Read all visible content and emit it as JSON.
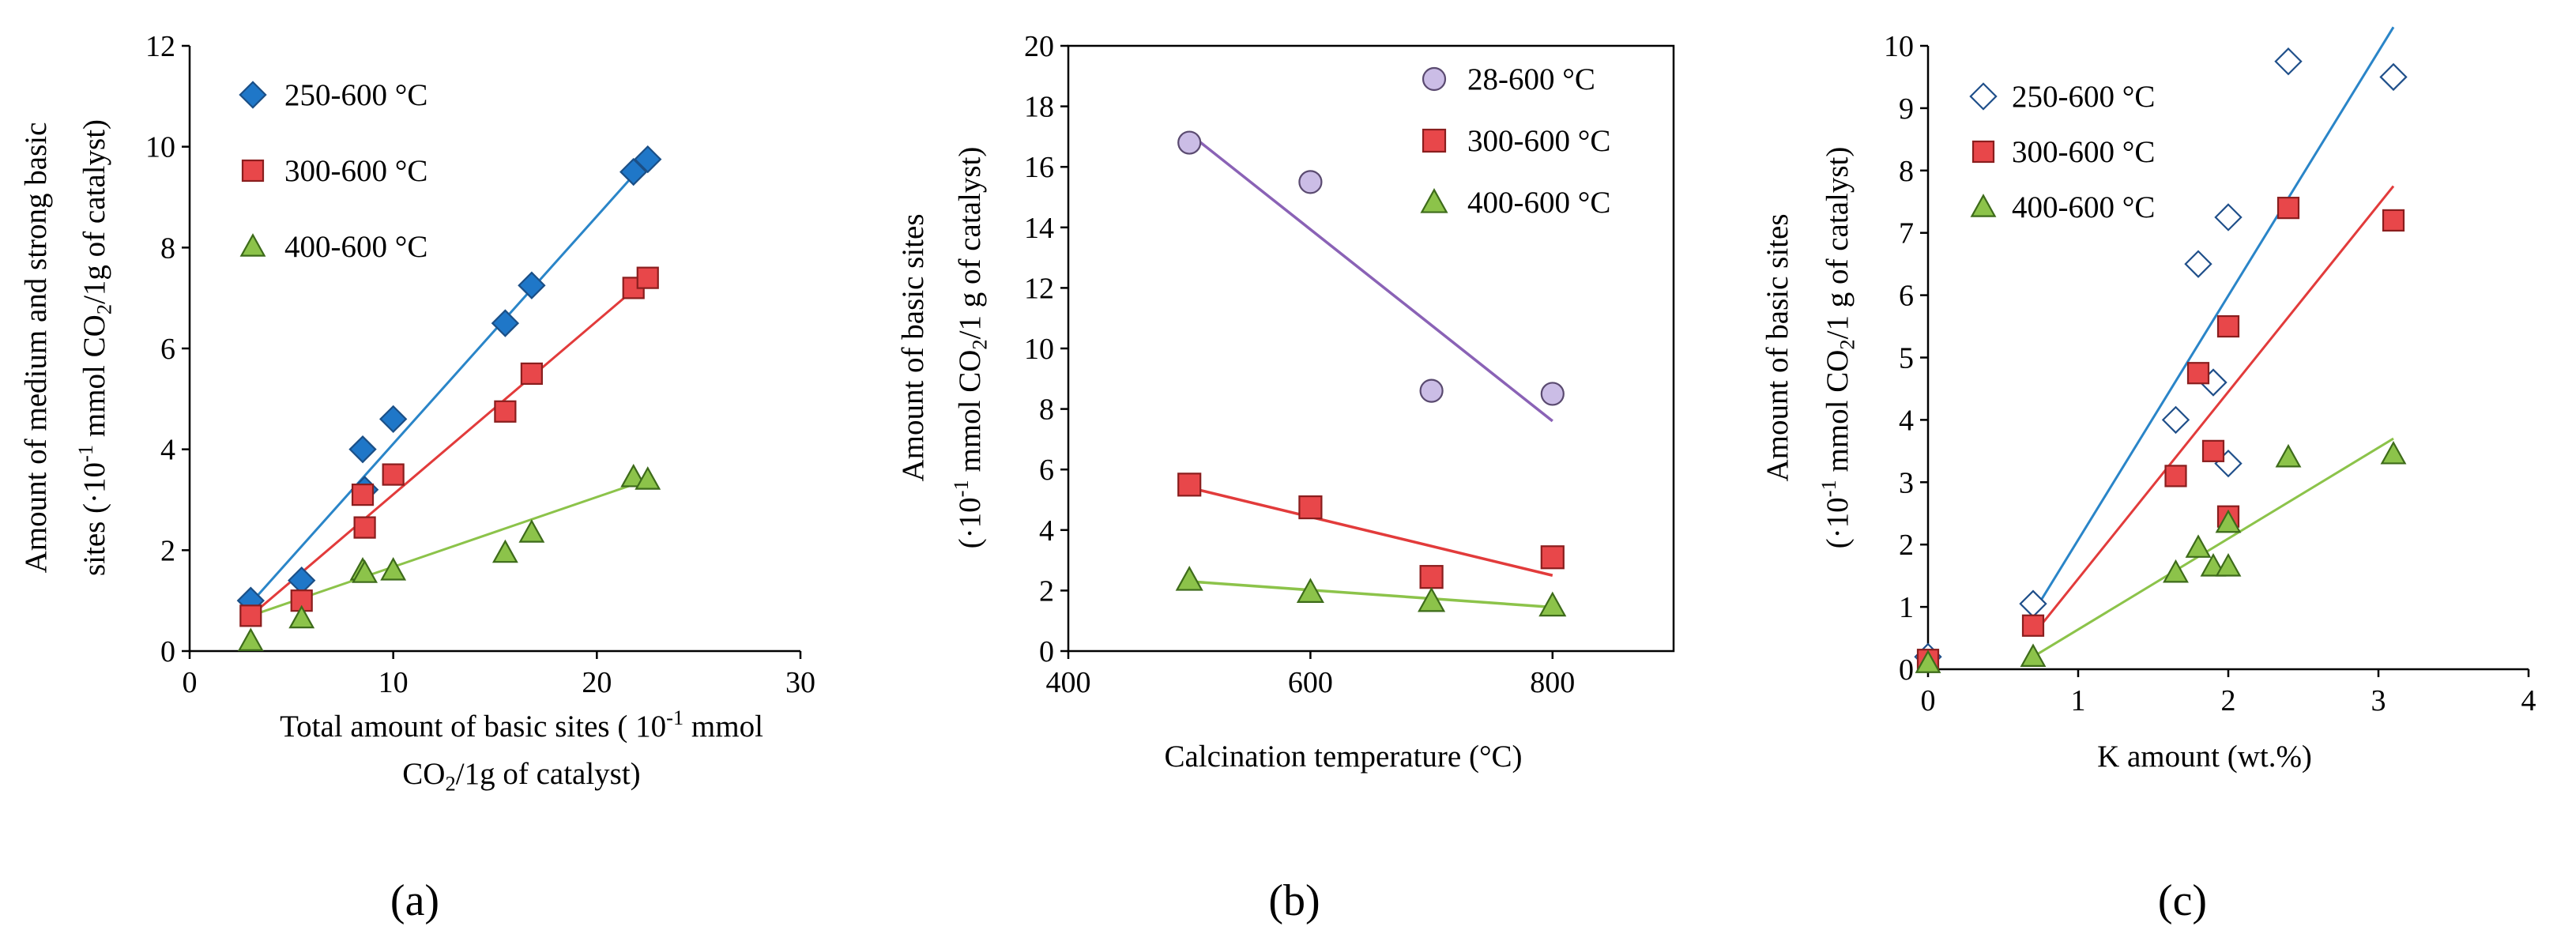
{
  "chart_data": [
    {
      "id": "a",
      "type": "scatter",
      "caption": "(a)",
      "xlabel_lines": [
        "Total amount of basic sites ( 10-1 mmol",
        "CO2/1g of catalyst)"
      ],
      "ylabel_lines": [
        "Amount of medium and strong basic",
        "sites (·10-1 mmol CO2/1g of catalyst)"
      ],
      "xlim": [
        0,
        30
      ],
      "ylim": [
        0,
        12
      ],
      "xticks": [
        "0",
        "10",
        "20",
        "30"
      ],
      "yticks": [
        "0",
        "2",
        "4",
        "6",
        "8",
        "10",
        "12"
      ],
      "series": [
        {
          "name": "250-600 °C",
          "marker": "diamond",
          "filled": true,
          "color": "#1f77c8",
          "line_color": "#2a85c8",
          "points": [
            [
              3.0,
              1.0
            ],
            [
              5.5,
              1.4
            ],
            [
              8.5,
              4.0
            ],
            [
              8.6,
              3.2
            ],
            [
              10.0,
              4.6
            ],
            [
              15.5,
              6.5
            ],
            [
              16.8,
              7.25
            ],
            [
              21.8,
              9.5
            ],
            [
              22.5,
              9.75
            ]
          ],
          "trend": [
            [
              3.0,
              0.95
            ],
            [
              22.5,
              9.75
            ]
          ]
        },
        {
          "name": "300-600 °C",
          "marker": "square",
          "filled": true,
          "color": "#e8474a",
          "line_color": "#e23b3b",
          "points": [
            [
              3.0,
              0.7
            ],
            [
              5.5,
              1.0
            ],
            [
              8.5,
              3.1
            ],
            [
              8.6,
              2.45
            ],
            [
              10.0,
              3.5
            ],
            [
              15.5,
              4.75
            ],
            [
              16.8,
              5.5
            ],
            [
              21.8,
              7.2
            ],
            [
              22.5,
              7.4
            ]
          ],
          "trend": [
            [
              3.0,
              0.7
            ],
            [
              22.5,
              7.4
            ]
          ]
        },
        {
          "name": "400-600 °C",
          "marker": "triangle",
          "filled": true,
          "color": "#8cc34a",
          "line_color": "#8cc34a",
          "points": [
            [
              3.0,
              0.2
            ],
            [
              5.5,
              0.65
            ],
            [
              8.5,
              1.6
            ],
            [
              8.6,
              1.55
            ],
            [
              10.0,
              1.6
            ],
            [
              15.5,
              1.95
            ],
            [
              16.8,
              2.35
            ],
            [
              21.8,
              3.45
            ],
            [
              22.5,
              3.4
            ]
          ],
          "trend": [
            [
              3.0,
              0.7
            ],
            [
              22.5,
              3.4
            ]
          ]
        }
      ]
    },
    {
      "id": "b",
      "type": "scatter",
      "caption": "(b)",
      "xlabel_lines": [
        "Calcination temperature (°C)"
      ],
      "ylabel_lines": [
        "Amount of basic sites",
        "(·10-1 mmol CO2/1 g of catalyst)"
      ],
      "xlim": [
        400,
        900
      ],
      "ylim": [
        0,
        20
      ],
      "xticks": [
        "400",
        "600",
        "800"
      ],
      "yticks": [
        "0",
        "2",
        "4",
        "6",
        "8",
        "10",
        "12",
        "14",
        "16",
        "18",
        "20"
      ],
      "series": [
        {
          "name": "28-600 °C",
          "marker": "circle",
          "filled": true,
          "color": "#cbbde6",
          "line_color": "#8a62b6",
          "points": [
            [
              500,
              16.8
            ],
            [
              600,
              15.5
            ],
            [
              700,
              8.6
            ],
            [
              800,
              8.5
            ]
          ],
          "trend": [
            [
              500,
              17.1
            ],
            [
              800,
              7.6
            ]
          ]
        },
        {
          "name": "300-600 °C",
          "marker": "square",
          "filled": true,
          "color": "#e8474a",
          "line_color": "#e23b3b",
          "points": [
            [
              500,
              5.5
            ],
            [
              600,
              4.75
            ],
            [
              700,
              2.45
            ],
            [
              800,
              3.1
            ]
          ],
          "trend": [
            [
              500,
              5.4
            ],
            [
              800,
              2.5
            ]
          ]
        },
        {
          "name": "400-600 °C",
          "marker": "triangle",
          "filled": true,
          "color": "#8cc34a",
          "line_color": "#8cc34a",
          "points": [
            [
              500,
              2.35
            ],
            [
              600,
              1.95
            ],
            [
              700,
              1.65
            ],
            [
              800,
              1.5
            ]
          ],
          "trend": [
            [
              500,
              2.3
            ],
            [
              800,
              1.45
            ]
          ]
        }
      ]
    },
    {
      "id": "c",
      "type": "scatter",
      "caption": "(c)",
      "xlabel_lines": [
        "K amount (wt.%)"
      ],
      "ylabel_lines": [
        "Amount of basic sites",
        "(·10-1 mmol CO2/1 g of catalyst)"
      ],
      "xlim": [
        0,
        4
      ],
      "ylim": [
        0,
        10
      ],
      "xticks": [
        "0",
        "1",
        "2",
        "3",
        "4"
      ],
      "yticks": [
        "0",
        "1",
        "2",
        "3",
        "4",
        "5",
        "6",
        "7",
        "8",
        "9",
        "10"
      ],
      "series": [
        {
          "name": "250-600 °C",
          "marker": "diamond",
          "filled": false,
          "color": "#ffffff",
          "line_color": "#2a85c8",
          "points": [
            [
              0,
              0.2
            ],
            [
              0.7,
              1.05
            ],
            [
              1.65,
              4.0
            ],
            [
              1.8,
              6.5
            ],
            [
              1.9,
              4.6
            ],
            [
              2.0,
              7.25
            ],
            [
              2.0,
              3.3
            ],
            [
              2.4,
              9.75
            ],
            [
              3.1,
              9.5
            ]
          ],
          "trend": [
            [
              0.7,
              0.9
            ],
            [
              3.1,
              10.3
            ]
          ]
        },
        {
          "name": "300-600 °C",
          "marker": "square",
          "filled": true,
          "color": "#e8474a",
          "line_color": "#e23b3b",
          "points": [
            [
              0,
              0.15
            ],
            [
              0.7,
              0.7
            ],
            [
              1.65,
              3.1
            ],
            [
              1.8,
              4.75
            ],
            [
              1.9,
              3.5
            ],
            [
              2.0,
              5.5
            ],
            [
              2.0,
              2.45
            ],
            [
              2.4,
              7.4
            ],
            [
              3.1,
              7.2
            ]
          ],
          "trend": [
            [
              0.7,
              0.55
            ],
            [
              3.1,
              7.75
            ]
          ]
        },
        {
          "name": "400-600 °C",
          "marker": "triangle",
          "filled": true,
          "color": "#8cc34a",
          "line_color": "#8cc34a",
          "points": [
            [
              0,
              0.1
            ],
            [
              0.7,
              0.2
            ],
            [
              1.65,
              1.55
            ],
            [
              1.8,
              1.95
            ],
            [
              1.9,
              1.65
            ],
            [
              2.0,
              1.65
            ],
            [
              2.0,
              2.35
            ],
            [
              2.4,
              3.4
            ],
            [
              3.1,
              3.45
            ]
          ],
          "trend": [
            [
              0.7,
              0.2
            ],
            [
              3.1,
              3.7
            ]
          ]
        }
      ]
    }
  ]
}
